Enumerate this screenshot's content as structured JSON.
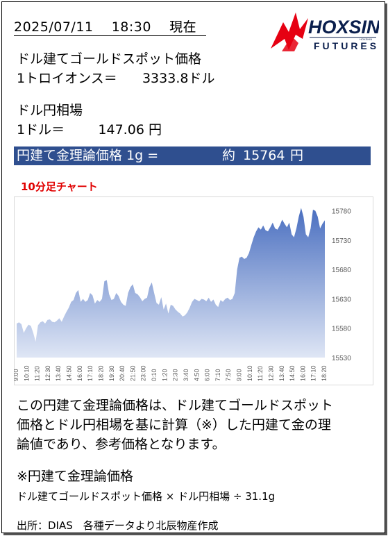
{
  "header": {
    "date": "2025/07/11",
    "time": "18:30",
    "as_of": "現在"
  },
  "logo": {
    "brand": "HOXSIN",
    "sub": "FUTURES",
    "tiny": "HOKSHIN"
  },
  "gold": {
    "title": "ドル建てゴールドスポット価格",
    "unit_label": "1トロイオンス＝",
    "value": "3333.8",
    "currency": "ドル"
  },
  "fx": {
    "title": "ドル円相場",
    "unit_label": "1ドル＝",
    "value": "147.06",
    "currency": "円"
  },
  "theoretical": {
    "label": "円建て金理論価格 1g =",
    "approx": "約",
    "value": "15764",
    "currency": "円"
  },
  "chart_label": "10分足チャート",
  "chart_data": {
    "type": "area",
    "title": "10分足チャート",
    "xlabel": "",
    "ylabel": "",
    "ylim": [
      15530,
      15795
    ],
    "y_ticks": [
      15530,
      15580,
      15630,
      15680,
      15730,
      15780
    ],
    "y_axis_side": "right",
    "grid": false,
    "x_tick_labels": [
      "9:00",
      "10:10",
      "11:20",
      "12:30",
      "13:40",
      "14:50",
      "16:00",
      "17:10",
      "18:20",
      "19:30",
      "20:40",
      "21:50",
      "23:00",
      "0:10",
      "1:20",
      "2:30",
      "3:40",
      "4:50",
      "6:00",
      "7:10",
      "7:50",
      "9:00",
      "10:10",
      "11:20",
      "12:30",
      "13:40",
      "14:50",
      "16:00",
      "17:10",
      "18:20"
    ],
    "series": [
      {
        "values": [
          15588,
          15590,
          15587,
          15572,
          15580,
          15586,
          15584,
          15572,
          15557,
          15585,
          15590,
          15592,
          15588,
          15594,
          15595,
          15591,
          15590,
          15593,
          15597,
          15591,
          15600,
          15608,
          15615,
          15625,
          15628,
          15640,
          15645,
          15625,
          15630,
          15625,
          15628,
          15640,
          15636,
          15622,
          15628,
          15625,
          15630,
          15660,
          15662,
          15638,
          15628,
          15630,
          15640,
          15635,
          15625,
          15620,
          15618,
          15640,
          15650,
          15655,
          15640,
          15638,
          15633,
          15626,
          15630,
          15632,
          15650,
          15658,
          15640,
          15623,
          15620,
          15633,
          15612,
          15622,
          15605,
          15620,
          15618,
          15612,
          15608,
          15605,
          15600,
          15602,
          15607,
          15615,
          15625,
          15630,
          15628,
          15626,
          15630,
          15629,
          15626,
          15632,
          15625,
          15629,
          15620,
          15616,
          15628,
          15625,
          15630,
          15632,
          15628,
          15630,
          15640,
          15680,
          15700,
          15702,
          15698,
          15700,
          15708,
          15722,
          15735,
          15745,
          15752,
          15748,
          15755,
          15747,
          15745,
          15752,
          15760,
          15750,
          15748,
          15755,
          15765,
          15758,
          15752,
          15760,
          15740,
          15735,
          15750,
          15770,
          15785,
          15770,
          15740,
          15735,
          15750,
          15782,
          15780,
          15770,
          15750,
          15758,
          15764
        ]
      }
    ]
  },
  "description": {
    "lines": [
      "この円建て金理論価格は、ドル建てゴールドスポット",
      "価格とドル円相場を基に計算（※）した円建て金の理",
      "論値であり、参考価格となります。"
    ]
  },
  "formula": {
    "title": "※円建て金理論価格",
    "text": "ドル建てゴールドスポット価格 × ドル円相場 ÷ 31.1g"
  },
  "source": "出所：DIAS　各種データより北辰物産作成"
}
